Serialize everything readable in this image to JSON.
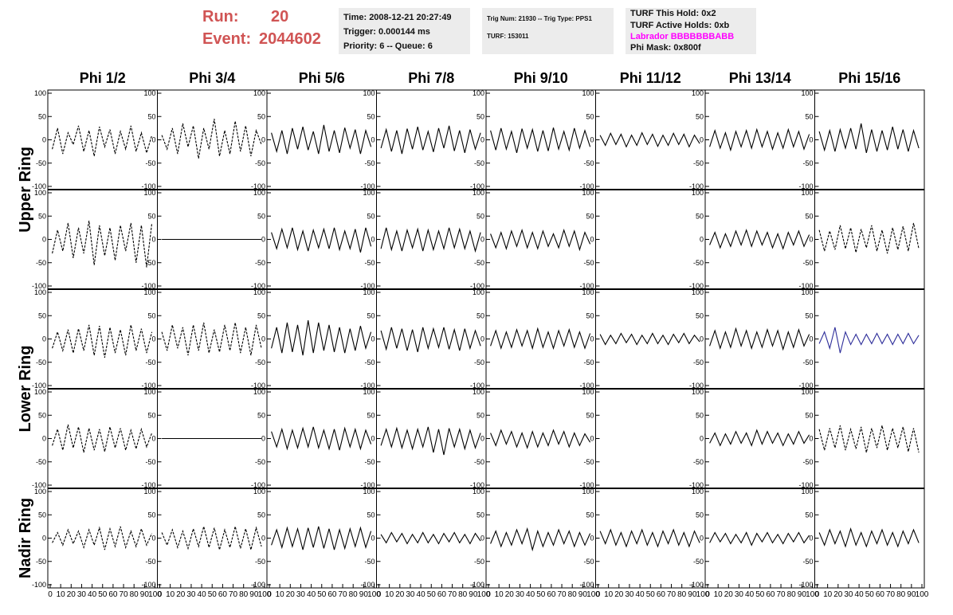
{
  "header": {
    "run_label": "Run:",
    "run": "20",
    "event_label": "Event:",
    "event": "2044602"
  },
  "info": [
    [
      "Time: 2008-12-21 20:27:49",
      "Trigger: 0.000144 ms",
      "Priority: 6 -- Queue: 6"
    ],
    [
      "Trig Num: 21930 -- Trig Type: PPS1",
      "TURF: 153011"
    ],
    [
      "TURF This Hold: 0x2",
      "TURF Active Holds: 0xb",
      "Labrador BBBBBBBABB",
      "Phi Mask: 0x800f"
    ]
  ],
  "chart_data": {
    "type": "line",
    "columns": [
      "Phi 1/2",
      "Phi 3/4",
      "Phi 5/6",
      "Phi 7/8",
      "Phi 9/10",
      "Phi 11/12",
      "Phi 13/14",
      "Phi 15/16"
    ],
    "row_labels": [
      "Upper Ring",
      "Lower Ring",
      "Nadir Ring"
    ],
    "ylim": [
      -100,
      100
    ],
    "yticks": [
      -100,
      -50,
      0,
      50,
      100
    ],
    "xlim": [
      0,
      100
    ],
    "xticks": [
      0,
      10,
      20,
      30,
      40,
      50,
      60,
      70,
      80,
      90,
      100
    ],
    "x": [
      2,
      7,
      12,
      17,
      22,
      27,
      32,
      37,
      42,
      47,
      52,
      57,
      62,
      67,
      72,
      77,
      82,
      87,
      92,
      97
    ],
    "panels": [
      {
        "row": 0,
        "col": 0,
        "style": "dashed",
        "color": "#000000",
        "values": [
          -20,
          25,
          -30,
          15,
          -10,
          30,
          -25,
          20,
          -35,
          28,
          -15,
          22,
          -30,
          18,
          -20,
          30,
          -25,
          15,
          -28,
          10
        ]
      },
      {
        "row": 0,
        "col": 1,
        "style": "dashed",
        "color": "#000000",
        "values": [
          10,
          -20,
          25,
          -30,
          35,
          -15,
          30,
          -40,
          25,
          -20,
          45,
          -35,
          20,
          -30,
          40,
          -25,
          30,
          -35,
          20,
          -10
        ]
      },
      {
        "row": 0,
        "col": 2,
        "style": "solid",
        "color": "#000000",
        "values": [
          15,
          -25,
          20,
          -30,
          25,
          -20,
          28,
          -22,
          18,
          -30,
          32,
          -25,
          20,
          -28,
          26,
          -18,
          22,
          -30,
          20,
          -15
        ]
      },
      {
        "row": 0,
        "col": 3,
        "style": "solid",
        "color": "#000000",
        "values": [
          -18,
          22,
          -25,
          20,
          -30,
          24,
          -20,
          28,
          -22,
          18,
          -26,
          25,
          -18,
          30,
          -24,
          20,
          -28,
          22,
          -20,
          15
        ]
      },
      {
        "row": 0,
        "col": 4,
        "style": "solid",
        "color": "#000000",
        "values": [
          20,
          -22,
          25,
          -20,
          18,
          -28,
          24,
          -18,
          22,
          -25,
          20,
          -24,
          26,
          -20,
          18,
          -22,
          25,
          -18,
          20,
          -15
        ]
      },
      {
        "row": 0,
        "col": 5,
        "style": "solid",
        "color": "#000000",
        "values": [
          10,
          -12,
          14,
          -10,
          12,
          -15,
          10,
          -12,
          15,
          -10,
          12,
          -14,
          10,
          -12,
          14,
          -10,
          12,
          -15,
          10,
          -8
        ]
      },
      {
        "row": 0,
        "col": 6,
        "style": "solid",
        "color": "#000000",
        "values": [
          -15,
          20,
          -18,
          15,
          -22,
          18,
          -15,
          20,
          -18,
          22,
          -15,
          18,
          -20,
          15,
          -18,
          22,
          -15,
          18,
          -20,
          12
        ]
      },
      {
        "row": 0,
        "col": 7,
        "style": "solid",
        "color": "#000000",
        "values": [
          18,
          -22,
          20,
          -25,
          22,
          -18,
          25,
          -20,
          35,
          -28,
          22,
          -25,
          20,
          -22,
          28,
          -20,
          22,
          -25,
          20,
          -18
        ]
      },
      {
        "row": 1,
        "col": 0,
        "style": "dashed",
        "color": "#000000",
        "values": [
          -30,
          20,
          -25,
          35,
          -40,
          25,
          -30,
          40,
          -55,
          30,
          -35,
          25,
          -45,
          30,
          -25,
          35,
          -50,
          30,
          -60,
          35
        ]
      },
      {
        "row": 1,
        "col": 1,
        "style": "solid",
        "color": "#000000",
        "values": [
          0,
          0,
          0,
          0,
          0,
          0,
          0,
          0,
          0,
          0,
          0,
          0,
          0,
          0,
          0,
          0,
          0,
          0,
          0,
          0
        ]
      },
      {
        "row": 1,
        "col": 2,
        "style": "solid",
        "color": "#000000",
        "values": [
          15,
          -20,
          22,
          -18,
          25,
          -22,
          18,
          -25,
          20,
          -18,
          22,
          -20,
          25,
          -22,
          18,
          -20,
          22,
          -28,
          25,
          -15
        ]
      },
      {
        "row": 1,
        "col": 3,
        "style": "solid",
        "color": "#000000",
        "values": [
          -20,
          25,
          -22,
          18,
          -25,
          20,
          -18,
          22,
          -25,
          20,
          -22,
          18,
          -20,
          25,
          -18,
          22,
          -20,
          18,
          -25,
          15
        ]
      },
      {
        "row": 1,
        "col": 4,
        "style": "solid",
        "color": "#000000",
        "values": [
          12,
          -18,
          15,
          -20,
          18,
          -15,
          20,
          -18,
          15,
          -20,
          18,
          -15,
          12,
          -18,
          20,
          -15,
          18,
          -22,
          15,
          -10
        ]
      },
      {
        "row": 1,
        "col": 6,
        "style": "solid",
        "color": "#000000",
        "values": [
          -12,
          15,
          -18,
          12,
          -15,
          18,
          -12,
          20,
          -15,
          18,
          -12,
          15,
          -18,
          12,
          -20,
          15,
          -12,
          18,
          -15,
          10
        ]
      },
      {
        "row": 1,
        "col": 7,
        "style": "dashed",
        "color": "#000000",
        "values": [
          20,
          -25,
          18,
          -22,
          30,
          -20,
          25,
          -28,
          22,
          -18,
          30,
          -25,
          20,
          -30,
          25,
          -22,
          28,
          -25,
          35,
          -20
        ]
      },
      {
        "row": 2,
        "col": 0,
        "style": "dashed",
        "color": "#000000",
        "values": [
          -20,
          15,
          -25,
          20,
          -30,
          22,
          -25,
          30,
          -35,
          28,
          -40,
          25,
          -30,
          20,
          -35,
          30,
          -25,
          22,
          -30,
          15
        ]
      },
      {
        "row": 2,
        "col": 1,
        "style": "dashed",
        "color": "#000000",
        "values": [
          15,
          -25,
          30,
          -20,
          25,
          -35,
          30,
          -25,
          35,
          -30,
          20,
          -28,
          30,
          -25,
          35,
          -30,
          25,
          -35,
          30,
          -20
        ]
      },
      {
        "row": 2,
        "col": 2,
        "style": "solid",
        "color": "#000000",
        "values": [
          -20,
          25,
          -30,
          35,
          -28,
          30,
          -35,
          40,
          -30,
          35,
          -25,
          30,
          -28,
          25,
          -30,
          22,
          -25,
          28,
          -20,
          15
        ]
      },
      {
        "row": 2,
        "col": 3,
        "style": "solid",
        "color": "#000000",
        "values": [
          18,
          -22,
          25,
          -20,
          22,
          -25,
          20,
          -28,
          25,
          -20,
          22,
          -18,
          25,
          -22,
          20,
          -25,
          22,
          -20,
          18,
          -15
        ]
      },
      {
        "row": 2,
        "col": 4,
        "style": "solid",
        "color": "#000000",
        "values": [
          -15,
          18,
          -20,
          15,
          -18,
          20,
          -15,
          18,
          -20,
          22,
          -18,
          15,
          -20,
          18,
          -15,
          20,
          -18,
          15,
          -20,
          12
        ]
      },
      {
        "row": 2,
        "col": 5,
        "style": "solid",
        "color": "#000000",
        "values": [
          10,
          -12,
          8,
          -10,
          12,
          -8,
          10,
          -12,
          8,
          -10,
          12,
          -10,
          8,
          -12,
          10,
          -8,
          12,
          -10,
          8,
          -6
        ]
      },
      {
        "row": 2,
        "col": 6,
        "style": "solid",
        "color": "#000000",
        "values": [
          -15,
          18,
          -20,
          15,
          -18,
          22,
          -15,
          18,
          -20,
          15,
          -18,
          20,
          -15,
          18,
          -22,
          15,
          -18,
          20,
          -15,
          10
        ]
      },
      {
        "row": 2,
        "col": 7,
        "style": "solid",
        "color": "#2e2e9a",
        "values": [
          -10,
          15,
          -20,
          25,
          -30,
          15,
          -12,
          10,
          -12,
          10,
          -10,
          12,
          -10,
          10,
          -12,
          10,
          -10,
          12,
          -10,
          8
        ]
      },
      {
        "row": 3,
        "col": 0,
        "style": "dashed",
        "color": "#000000",
        "values": [
          -15,
          20,
          -25,
          30,
          -20,
          25,
          -30,
          22,
          -25,
          20,
          -28,
          25,
          -20,
          22,
          -25,
          18,
          -22,
          20,
          -18,
          12
        ]
      },
      {
        "row": 3,
        "col": 1,
        "style": "solid",
        "color": "#000000",
        "values": [
          0,
          0,
          0,
          0,
          0,
          0,
          0,
          0,
          0,
          0,
          0,
          0,
          0,
          0,
          0,
          0,
          0,
          0,
          0,
          0
        ]
      },
      {
        "row": 3,
        "col": 2,
        "style": "solid",
        "color": "#000000",
        "values": [
          15,
          -18,
          20,
          -22,
          18,
          -20,
          22,
          -18,
          25,
          -20,
          18,
          -22,
          20,
          -25,
          22,
          -18,
          20,
          -22,
          18,
          -12
        ]
      },
      {
        "row": 3,
        "col": 3,
        "style": "solid",
        "color": "#000000",
        "values": [
          -15,
          20,
          -18,
          22,
          -20,
          18,
          -22,
          20,
          -18,
          25,
          -30,
          20,
          -35,
          22,
          -18,
          20,
          -22,
          18,
          -20,
          12
        ]
      },
      {
        "row": 3,
        "col": 4,
        "style": "solid",
        "color": "#000000",
        "values": [
          12,
          -15,
          18,
          -12,
          15,
          -18,
          12,
          -20,
          15,
          -18,
          12,
          -15,
          18,
          -12,
          15,
          -18,
          12,
          -15,
          10,
          -8
        ]
      },
      {
        "row": 3,
        "col": 6,
        "style": "solid",
        "color": "#000000",
        "values": [
          -10,
          12,
          -15,
          10,
          -12,
          15,
          -10,
          12,
          -15,
          18,
          -12,
          15,
          -10,
          12,
          -15,
          10,
          -12,
          15,
          -10,
          8
        ]
      },
      {
        "row": 3,
        "col": 7,
        "style": "dashed",
        "color": "#000000",
        "values": [
          20,
          -25,
          22,
          -20,
          28,
          -25,
          20,
          -22,
          25,
          -30,
          22,
          -20,
          28,
          -25,
          22,
          -20,
          25,
          -28,
          22,
          -30
        ]
      },
      {
        "row": 4,
        "col": 0,
        "style": "dashed",
        "color": "#000000",
        "values": [
          -10,
          12,
          -15,
          18,
          -12,
          15,
          -20,
          18,
          -15,
          22,
          -25,
          20,
          -18,
          25,
          -20,
          15,
          -18,
          20,
          -15,
          10
        ]
      },
      {
        "row": 4,
        "col": 1,
        "style": "dashed",
        "color": "#000000",
        "values": [
          12,
          -15,
          18,
          -20,
          15,
          -22,
          20,
          -18,
          25,
          -20,
          22,
          -25,
          18,
          -20,
          25,
          -22,
          20,
          -25,
          22,
          -18
        ]
      },
      {
        "row": 4,
        "col": 2,
        "style": "solid",
        "color": "#000000",
        "values": [
          -15,
          18,
          -20,
          22,
          -18,
          20,
          -25,
          22,
          -20,
          25,
          -22,
          20,
          -25,
          18,
          -22,
          20,
          -18,
          22,
          -20,
          15
        ]
      },
      {
        "row": 4,
        "col": 3,
        "style": "solid",
        "color": "#000000",
        "values": [
          8,
          -10,
          12,
          -8,
          10,
          -12,
          8,
          -10,
          12,
          -10,
          8,
          -12,
          10,
          -8,
          12,
          -10,
          8,
          -12,
          10,
          -6
        ]
      },
      {
        "row": 4,
        "col": 4,
        "style": "solid",
        "color": "#000000",
        "values": [
          -12,
          15,
          -18,
          12,
          -15,
          18,
          -12,
          20,
          -25,
          15,
          -18,
          12,
          -15,
          18,
          -12,
          15,
          -18,
          12,
          -15,
          10
        ]
      },
      {
        "row": 4,
        "col": 5,
        "style": "solid",
        "color": "#000000",
        "values": [
          15,
          -12,
          18,
          -15,
          12,
          -18,
          15,
          -12,
          18,
          -15,
          12,
          -18,
          15,
          -12,
          18,
          -15,
          12,
          -18,
          15,
          -10
        ]
      },
      {
        "row": 4,
        "col": 6,
        "style": "solid",
        "color": "#000000",
        "values": [
          -10,
          12,
          -8,
          10,
          -12,
          8,
          -10,
          12,
          -15,
          10,
          -8,
          12,
          -10,
          8,
          -12,
          10,
          -8,
          12,
          -10,
          6
        ]
      },
      {
        "row": 4,
        "col": 7,
        "style": "solid",
        "color": "#000000",
        "values": [
          12,
          -15,
          18,
          -12,
          15,
          -18,
          20,
          -15,
          12,
          -18,
          15,
          -12,
          18,
          -15,
          12,
          -18,
          15,
          -12,
          18,
          -10
        ]
      }
    ]
  }
}
